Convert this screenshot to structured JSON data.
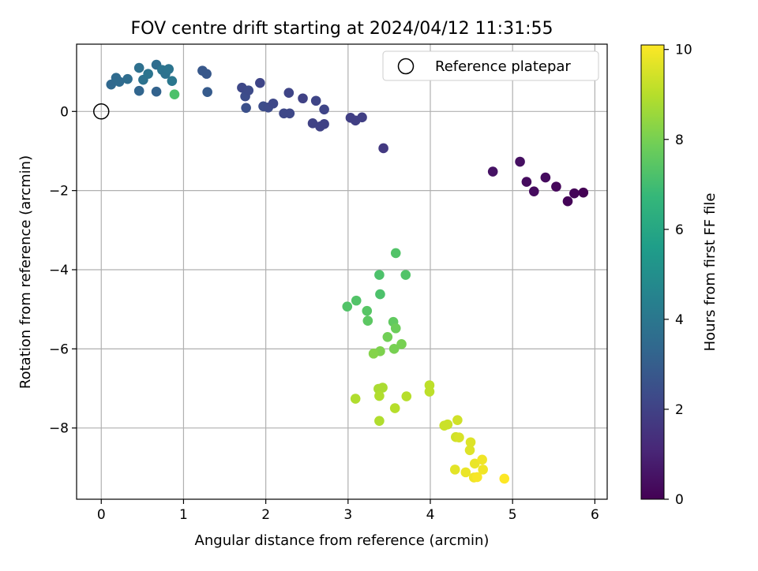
{
  "chart_data": {
    "type": "scatter",
    "title": "FOV centre drift starting at 2024/04/12 11:31:55",
    "xlabel": "Angular distance from reference (arcmin)",
    "ylabel": "Rotation from reference (arcmin)",
    "xlim": [
      -0.3,
      6.15
    ],
    "ylim": [
      -9.8,
      1.7
    ],
    "xticks": [
      0,
      1,
      2,
      3,
      4,
      5,
      6
    ],
    "yticks": [
      0,
      -2,
      -4,
      -6,
      -8
    ],
    "grid": true,
    "legend": {
      "position": "top-right",
      "entries": [
        "Reference platepar"
      ]
    },
    "reference_point": {
      "x": 0,
      "y": 0
    },
    "colorbar": {
      "label": "Hours from first FF file",
      "range": [
        0,
        10.1
      ],
      "ticks": [
        0,
        2,
        4,
        6,
        8,
        10
      ],
      "colormap": [
        "#440154",
        "#482878",
        "#3e4989",
        "#31688e",
        "#26828e",
        "#1f9e89",
        "#35b779",
        "#6ece58",
        "#b5de2b",
        "#fde725"
      ]
    },
    "points": [
      {
        "x": 0.12,
        "y": 0.68,
        "h": 3.4
      },
      {
        "x": 0.18,
        "y": 0.85,
        "h": 3.5
      },
      {
        "x": 0.22,
        "y": 0.75,
        "h": 3.5
      },
      {
        "x": 0.32,
        "y": 0.82,
        "h": 3.6
      },
      {
        "x": 0.46,
        "y": 1.1,
        "h": 3.7
      },
      {
        "x": 0.46,
        "y": 0.52,
        "h": 3.3
      },
      {
        "x": 0.51,
        "y": 0.8,
        "h": 3.8
      },
      {
        "x": 0.57,
        "y": 0.95,
        "h": 3.9
      },
      {
        "x": 0.67,
        "y": 1.18,
        "h": 3.6
      },
      {
        "x": 0.67,
        "y": 0.5,
        "h": 3.2
      },
      {
        "x": 0.74,
        "y": 1.05,
        "h": 3.9
      },
      {
        "x": 0.78,
        "y": 0.95,
        "h": 3.8
      },
      {
        "x": 0.82,
        "y": 1.07,
        "h": 3.9
      },
      {
        "x": 0.86,
        "y": 0.77,
        "h": 4.0
      },
      {
        "x": 0.89,
        "y": 0.43,
        "h": 7.2
      },
      {
        "x": 1.23,
        "y": 1.03,
        "h": 2.8
      },
      {
        "x": 1.28,
        "y": 0.95,
        "h": 2.8
      },
      {
        "x": 1.29,
        "y": 0.49,
        "h": 2.9
      },
      {
        "x": 1.71,
        "y": 0.6,
        "h": 2.2
      },
      {
        "x": 1.75,
        "y": 0.38,
        "h": 2.4
      },
      {
        "x": 1.76,
        "y": 0.09,
        "h": 2.5
      },
      {
        "x": 1.79,
        "y": 0.53,
        "h": 2.3
      },
      {
        "x": 1.93,
        "y": 0.72,
        "h": 2.1
      },
      {
        "x": 1.97,
        "y": 0.13,
        "h": 2.4
      },
      {
        "x": 2.03,
        "y": 0.1,
        "h": 2.3
      },
      {
        "x": 2.09,
        "y": 0.2,
        "h": 2.2
      },
      {
        "x": 2.22,
        "y": -0.05,
        "h": 2.2
      },
      {
        "x": 2.28,
        "y": 0.47,
        "h": 2.1
      },
      {
        "x": 2.29,
        "y": -0.05,
        "h": 2.2
      },
      {
        "x": 2.45,
        "y": 0.33,
        "h": 2.0
      },
      {
        "x": 2.57,
        "y": -0.3,
        "h": 2.0
      },
      {
        "x": 2.61,
        "y": 0.27,
        "h": 2.1
      },
      {
        "x": 2.66,
        "y": -0.38,
        "h": 2.0
      },
      {
        "x": 2.71,
        "y": -0.32,
        "h": 2.0
      },
      {
        "x": 2.71,
        "y": 0.05,
        "h": 2.1
      },
      {
        "x": 3.03,
        "y": -0.16,
        "h": 1.9
      },
      {
        "x": 3.09,
        "y": -0.23,
        "h": 1.9
      },
      {
        "x": 3.17,
        "y": -0.15,
        "h": 1.9
      },
      {
        "x": 3.43,
        "y": -0.93,
        "h": 1.7
      },
      {
        "x": 4.76,
        "y": -1.52,
        "h": 0.5
      },
      {
        "x": 5.09,
        "y": -1.27,
        "h": 0.4
      },
      {
        "x": 5.17,
        "y": -1.78,
        "h": 0.3
      },
      {
        "x": 5.26,
        "y": -2.02,
        "h": 0.3
      },
      {
        "x": 5.4,
        "y": -1.67,
        "h": 0.3
      },
      {
        "x": 5.53,
        "y": -1.9,
        "h": 0.2
      },
      {
        "x": 5.67,
        "y": -2.27,
        "h": 0.1
      },
      {
        "x": 5.75,
        "y": -2.07,
        "h": 0.1
      },
      {
        "x": 5.86,
        "y": -2.05,
        "h": 0.0
      },
      {
        "x": 3.58,
        "y": -3.58,
        "h": 7.3
      },
      {
        "x": 3.38,
        "y": -4.13,
        "h": 7.2
      },
      {
        "x": 3.7,
        "y": -4.13,
        "h": 7.3
      },
      {
        "x": 3.39,
        "y": -4.62,
        "h": 7.2
      },
      {
        "x": 2.99,
        "y": -4.93,
        "h": 7.3
      },
      {
        "x": 3.1,
        "y": -4.78,
        "h": 7.3
      },
      {
        "x": 3.23,
        "y": -5.04,
        "h": 7.4
      },
      {
        "x": 3.24,
        "y": -5.29,
        "h": 7.5
      },
      {
        "x": 3.55,
        "y": -5.32,
        "h": 7.6
      },
      {
        "x": 3.58,
        "y": -5.48,
        "h": 7.8
      },
      {
        "x": 3.48,
        "y": -5.7,
        "h": 7.9
      },
      {
        "x": 3.65,
        "y": -5.88,
        "h": 8.0
      },
      {
        "x": 3.56,
        "y": -6.0,
        "h": 8.0
      },
      {
        "x": 3.39,
        "y": -6.06,
        "h": 8.1
      },
      {
        "x": 3.31,
        "y": -6.12,
        "h": 8.2
      },
      {
        "x": 3.37,
        "y": -7.01,
        "h": 8.8
      },
      {
        "x": 3.42,
        "y": -6.98,
        "h": 8.8
      },
      {
        "x": 3.38,
        "y": -7.19,
        "h": 8.9
      },
      {
        "x": 3.09,
        "y": -7.26,
        "h": 8.9
      },
      {
        "x": 3.57,
        "y": -7.5,
        "h": 9.0
      },
      {
        "x": 3.71,
        "y": -7.2,
        "h": 9.0
      },
      {
        "x": 3.38,
        "y": -7.82,
        "h": 8.9
      },
      {
        "x": 3.99,
        "y": -6.92,
        "h": 9.1
      },
      {
        "x": 3.99,
        "y": -7.08,
        "h": 9.1
      },
      {
        "x": 4.17,
        "y": -7.94,
        "h": 9.3
      },
      {
        "x": 4.21,
        "y": -7.91,
        "h": 9.3
      },
      {
        "x": 4.33,
        "y": -7.8,
        "h": 9.4
      },
      {
        "x": 4.31,
        "y": -8.23,
        "h": 9.4
      },
      {
        "x": 4.35,
        "y": -8.24,
        "h": 9.5
      },
      {
        "x": 4.49,
        "y": -8.36,
        "h": 9.6
      },
      {
        "x": 4.48,
        "y": -8.56,
        "h": 9.6
      },
      {
        "x": 4.3,
        "y": -9.05,
        "h": 9.7
      },
      {
        "x": 4.43,
        "y": -9.12,
        "h": 9.8
      },
      {
        "x": 4.54,
        "y": -8.9,
        "h": 9.8
      },
      {
        "x": 4.63,
        "y": -8.8,
        "h": 9.9
      },
      {
        "x": 4.64,
        "y": -9.05,
        "h": 9.9
      },
      {
        "x": 4.53,
        "y": -9.25,
        "h": 9.9
      },
      {
        "x": 4.57,
        "y": -9.24,
        "h": 10.0
      },
      {
        "x": 4.9,
        "y": -9.28,
        "h": 10.1
      }
    ]
  }
}
